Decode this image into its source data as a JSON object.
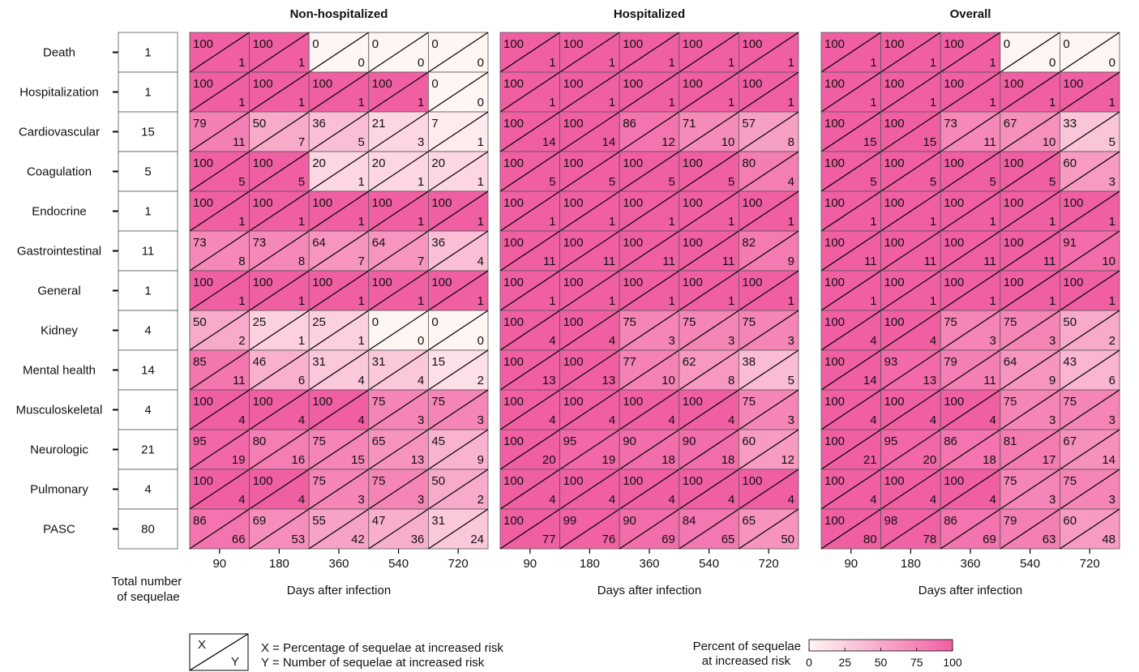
{
  "chart_data": {
    "type": "heatmap",
    "x_label": "Days after infection",
    "x_ticks": [
      "90",
      "180",
      "360",
      "540",
      "720"
    ],
    "categories": [
      "Death",
      "Hospitalization",
      "Cardiovascular",
      "Coagulation",
      "Endocrine",
      "Gastrointestinal",
      "General",
      "Kidney",
      "Mental health",
      "Musculoskeletal",
      "Neurologic",
      "Pulmonary",
      "PASC"
    ],
    "totals": [
      1,
      1,
      15,
      5,
      1,
      11,
      1,
      4,
      14,
      4,
      21,
      4,
      80
    ],
    "totals_label": "Total number\nof sequelae",
    "panels": [
      {
        "title": "Non-hospitalized",
        "percent": [
          [
            100,
            100,
            0,
            0,
            0
          ],
          [
            100,
            100,
            100,
            100,
            0
          ],
          [
            79,
            50,
            36,
            21,
            7
          ],
          [
            100,
            100,
            20,
            20,
            20
          ],
          [
            100,
            100,
            100,
            100,
            100
          ],
          [
            73,
            73,
            64,
            64,
            36
          ],
          [
            100,
            100,
            100,
            100,
            100
          ],
          [
            50,
            25,
            25,
            0,
            0
          ],
          [
            85,
            46,
            31,
            31,
            15
          ],
          [
            100,
            100,
            100,
            75,
            75
          ],
          [
            95,
            80,
            75,
            65,
            45
          ],
          [
            100,
            100,
            75,
            75,
            50
          ],
          [
            86,
            69,
            55,
            47,
            31
          ]
        ],
        "count": [
          [
            1,
            1,
            0,
            0,
            0
          ],
          [
            1,
            1,
            1,
            1,
            0
          ],
          [
            11,
            7,
            5,
            3,
            1
          ],
          [
            5,
            5,
            1,
            1,
            1
          ],
          [
            1,
            1,
            1,
            1,
            1
          ],
          [
            8,
            8,
            7,
            7,
            4
          ],
          [
            1,
            1,
            1,
            1,
            1
          ],
          [
            2,
            1,
            1,
            0,
            0
          ],
          [
            11,
            6,
            4,
            4,
            2
          ],
          [
            4,
            4,
            4,
            3,
            3
          ],
          [
            19,
            16,
            15,
            13,
            9
          ],
          [
            4,
            4,
            3,
            3,
            2
          ],
          [
            66,
            53,
            42,
            36,
            24
          ]
        ]
      },
      {
        "title": "Hospitalized",
        "percent": [
          [
            100,
            100,
            100,
            100,
            100
          ],
          [
            100,
            100,
            100,
            100,
            100
          ],
          [
            100,
            100,
            86,
            71,
            57
          ],
          [
            100,
            100,
            100,
            100,
            80
          ],
          [
            100,
            100,
            100,
            100,
            100
          ],
          [
            100,
            100,
            100,
            100,
            82
          ],
          [
            100,
            100,
            100,
            100,
            100
          ],
          [
            100,
            100,
            75,
            75,
            75
          ],
          [
            100,
            100,
            77,
            62,
            38
          ],
          [
            100,
            100,
            100,
            100,
            75
          ],
          [
            100,
            95,
            90,
            90,
            60
          ],
          [
            100,
            100,
            100,
            100,
            100
          ],
          [
            100,
            99,
            90,
            84,
            65
          ]
        ],
        "count": [
          [
            1,
            1,
            1,
            1,
            1
          ],
          [
            1,
            1,
            1,
            1,
            1
          ],
          [
            14,
            14,
            12,
            10,
            8
          ],
          [
            5,
            5,
            5,
            5,
            4
          ],
          [
            1,
            1,
            1,
            1,
            1
          ],
          [
            11,
            11,
            11,
            11,
            9
          ],
          [
            1,
            1,
            1,
            1,
            1
          ],
          [
            4,
            4,
            3,
            3,
            3
          ],
          [
            13,
            13,
            10,
            8,
            5
          ],
          [
            4,
            4,
            4,
            4,
            3
          ],
          [
            20,
            19,
            18,
            18,
            12
          ],
          [
            4,
            4,
            4,
            4,
            4
          ],
          [
            77,
            76,
            69,
            65,
            50
          ]
        ]
      },
      {
        "title": "Overall",
        "percent": [
          [
            100,
            100,
            100,
            0,
            0
          ],
          [
            100,
            100,
            100,
            100,
            100
          ],
          [
            100,
            100,
            73,
            67,
            33
          ],
          [
            100,
            100,
            100,
            100,
            60
          ],
          [
            100,
            100,
            100,
            100,
            100
          ],
          [
            100,
            100,
            100,
            100,
            91
          ],
          [
            100,
            100,
            100,
            100,
            100
          ],
          [
            100,
            100,
            75,
            75,
            50
          ],
          [
            100,
            93,
            79,
            64,
            43
          ],
          [
            100,
            100,
            100,
            75,
            75
          ],
          [
            100,
            95,
            86,
            81,
            67
          ],
          [
            100,
            100,
            100,
            75,
            75
          ],
          [
            100,
            98,
            86,
            79,
            60
          ]
        ],
        "count": [
          [
            1,
            1,
            1,
            0,
            0
          ],
          [
            1,
            1,
            1,
            1,
            1
          ],
          [
            15,
            15,
            11,
            10,
            5
          ],
          [
            5,
            5,
            5,
            5,
            3
          ],
          [
            1,
            1,
            1,
            1,
            1
          ],
          [
            11,
            11,
            11,
            11,
            10
          ],
          [
            1,
            1,
            1,
            1,
            1
          ],
          [
            4,
            4,
            3,
            3,
            2
          ],
          [
            14,
            13,
            11,
            9,
            6
          ],
          [
            4,
            4,
            4,
            3,
            3
          ],
          [
            21,
            20,
            18,
            17,
            14
          ],
          [
            4,
            4,
            4,
            3,
            3
          ],
          [
            80,
            78,
            69,
            63,
            48
          ]
        ]
      }
    ],
    "key": {
      "x_symbol": "X",
      "y_symbol": "Y",
      "x_desc": "X = Percentage of sequelae at increased risk",
      "y_desc": "Y = Number of sequelae at increased risk"
    },
    "colorbar": {
      "title_line1": "Percent of sequelae",
      "title_line2": "at increased risk",
      "ticks": [
        "0",
        "25",
        "50",
        "75",
        "100"
      ],
      "low_color": "#fff5f3",
      "high_color": "#f15fa3"
    }
  }
}
